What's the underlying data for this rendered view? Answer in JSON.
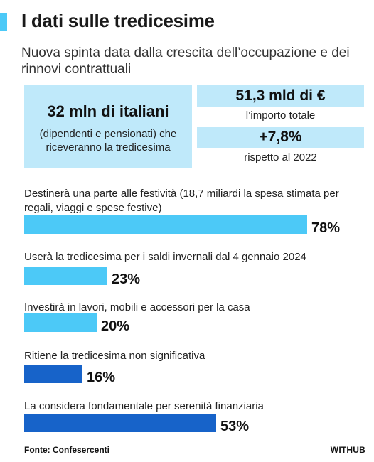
{
  "header": {
    "title": "I dati sulle tredicesime",
    "subtitle": "Nuova spinta data dalla crescita dell’occupazione e dei rinnovi contrattuali"
  },
  "highlights": {
    "main": {
      "value": "32 mln di italiani",
      "description": "(dipendenti e pensionati) che riceveranno la tredicesima"
    },
    "amount": {
      "value": "51,3 mld di €",
      "caption": "l’importo totale"
    },
    "change": {
      "value": "+7,8%",
      "caption": "rispetto al 2022"
    }
  },
  "chart_data": {
    "type": "bar",
    "orientation": "horizontal",
    "categories": [
      "Destinerà una parte alle festività (18,7 miliardi la spesa stimata per regali, viaggi e spese festive)",
      "Userà la tredicesima per i saldi invernali dal 4 gennaio 2024",
      "Investirà in lavori, mobili e accessori per la casa",
      "Ritiene la tredicesima non significativa",
      "La considera fondamentale per serenità finanziaria"
    ],
    "values": [
      78,
      23,
      20,
      16,
      53
    ],
    "value_labels": [
      "78%",
      "23%",
      "20%",
      "16%",
      "53%"
    ],
    "colors": [
      "#4cc9f7",
      "#4cc9f7",
      "#4cc9f7",
      "#1763c9",
      "#1763c9"
    ],
    "xlim": [
      0,
      100
    ],
    "grid": false
  },
  "footer": {
    "source": "Fonte: Confesercenti",
    "brand": "WITHUB"
  }
}
